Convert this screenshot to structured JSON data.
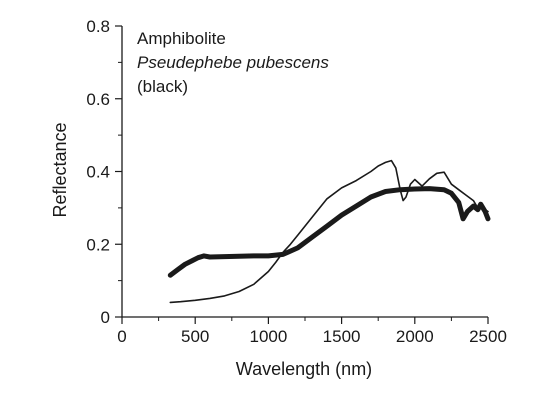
{
  "chart_data": {
    "type": "line",
    "title": "",
    "xlabel": "Wavelength (nm)",
    "ylabel": "Reflectance",
    "xlim": [
      0,
      2500
    ],
    "ylim": [
      0,
      0.8
    ],
    "x_ticks": [
      0,
      500,
      1000,
      1500,
      2000,
      2500
    ],
    "x_tick_labels": [
      "0",
      "500",
      "1000",
      "1500",
      "2000",
      "2500"
    ],
    "y_ticks": [
      0,
      0.2,
      0.4,
      0.6,
      0.8
    ],
    "y_tick_labels": [
      "0",
      "0.2",
      "0.4",
      "0.6",
      "0.8"
    ],
    "grid": false,
    "legend_position": "top-left",
    "annotation_lines": [
      {
        "text": "Amphibolite",
        "italic": false
      },
      {
        "text": "Pseudephebe pubescens",
        "italic": true
      },
      {
        "text": "(black)",
        "italic": false
      }
    ],
    "series": [
      {
        "style": "thick",
        "color": "#1a1a1a",
        "x": [
          330,
          380,
          430,
          480,
          520,
          560,
          600,
          700,
          800,
          900,
          1000,
          1100,
          1200,
          1300,
          1400,
          1500,
          1600,
          1700,
          1800,
          1900,
          2000,
          2100,
          2200,
          2250,
          2300,
          2330,
          2360,
          2400,
          2430,
          2450,
          2480,
          2500
        ],
        "y": [
          0.115,
          0.13,
          0.145,
          0.155,
          0.163,
          0.168,
          0.165,
          0.166,
          0.167,
          0.168,
          0.168,
          0.172,
          0.19,
          0.22,
          0.25,
          0.28,
          0.305,
          0.33,
          0.345,
          0.35,
          0.352,
          0.353,
          0.35,
          0.34,
          0.315,
          0.27,
          0.29,
          0.305,
          0.295,
          0.31,
          0.29,
          0.27
        ]
      },
      {
        "style": "thin",
        "color": "#1a1a1a",
        "x": [
          330,
          400,
          500,
          600,
          700,
          800,
          900,
          1000,
          1050,
          1100,
          1150,
          1200,
          1300,
          1400,
          1500,
          1600,
          1700,
          1750,
          1800,
          1840,
          1870,
          1900,
          1920,
          1940,
          1970,
          2000,
          2050,
          2100,
          2150,
          2200,
          2250,
          2300,
          2350,
          2400,
          2430,
          2450,
          2480,
          2500
        ],
        "y": [
          0.04,
          0.042,
          0.046,
          0.051,
          0.058,
          0.07,
          0.09,
          0.125,
          0.15,
          0.178,
          0.2,
          0.225,
          0.275,
          0.325,
          0.355,
          0.375,
          0.4,
          0.415,
          0.425,
          0.43,
          0.41,
          0.35,
          0.32,
          0.33,
          0.365,
          0.378,
          0.36,
          0.38,
          0.395,
          0.398,
          0.365,
          0.35,
          0.335,
          0.32,
          0.3,
          0.31,
          0.295,
          0.29
        ]
      }
    ]
  }
}
